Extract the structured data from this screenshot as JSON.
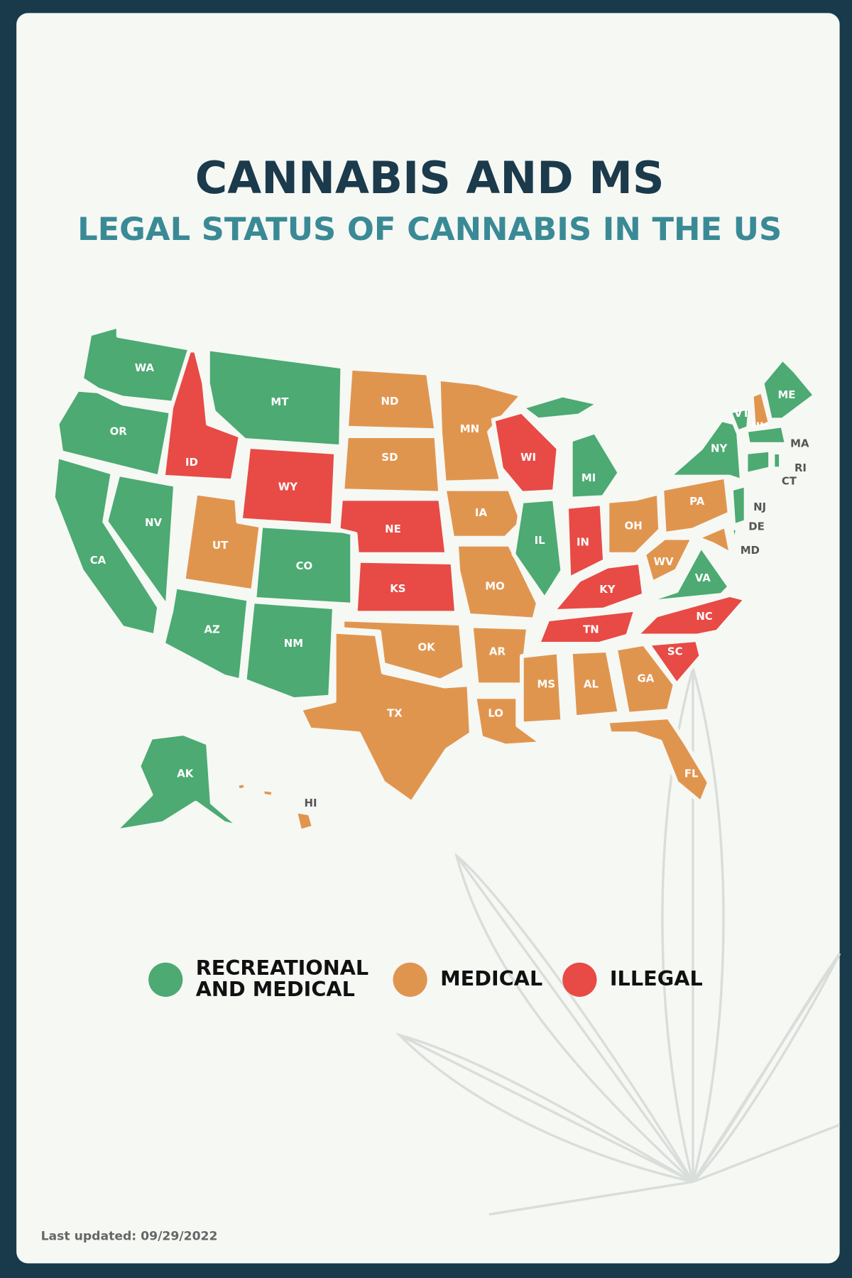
{
  "title": "CANNABIS AND MS",
  "subtitle": "LEGAL STATUS OF CANNABIS IN THE US",
  "states": [
    {
      "label": "WA",
      "color": "#4caa72"
    },
    {
      "label": "OR",
      "color": "#4caa72"
    },
    {
      "label": "CA",
      "color": "#4caa72"
    },
    {
      "label": "NV",
      "color": "#4caa72"
    },
    {
      "label": "ID",
      "color": "#e84a45"
    },
    {
      "label": "MT",
      "color": "#4caa72"
    },
    {
      "label": "WY",
      "color": "#e84a45"
    },
    {
      "label": "UT",
      "color": "#e0954f"
    },
    {
      "label": "CO",
      "color": "#4caa72"
    },
    {
      "label": "AZ",
      "color": "#4caa72"
    },
    {
      "label": "NM",
      "color": "#4caa72"
    },
    {
      "label": "ND",
      "color": "#e0954f"
    },
    {
      "label": "SD",
      "color": "#e0954f"
    },
    {
      "label": "NE",
      "color": "#e84a45"
    },
    {
      "label": "KS",
      "color": "#e84a45"
    },
    {
      "label": "OK",
      "color": "#e0954f"
    },
    {
      "label": "TX",
      "color": "#e0954f"
    },
    {
      "label": "MN",
      "color": "#e0954f"
    },
    {
      "label": "IA",
      "color": "#e0954f"
    },
    {
      "label": "MO",
      "color": "#e0954f"
    },
    {
      "label": "AR",
      "color": "#e0954f"
    },
    {
      "label": "LO",
      "color": "#e0954f"
    },
    {
      "label": "WI",
      "color": "#e84a45"
    },
    {
      "label": "MI",
      "color": "#4caa72"
    },
    {
      "label": "IL",
      "color": "#4caa72"
    },
    {
      "label": "IN",
      "color": "#e84a45"
    },
    {
      "label": "OH",
      "color": "#e0954f"
    },
    {
      "label": "KY",
      "color": "#e84a45"
    },
    {
      "label": "TN",
      "color": "#e84a45"
    },
    {
      "label": "MS",
      "color": "#e0954f"
    },
    {
      "label": "AL",
      "color": "#e0954f"
    },
    {
      "label": "GA",
      "color": "#e0954f"
    },
    {
      "label": "FL",
      "color": "#e0954f"
    },
    {
      "label": "SC",
      "color": "#e84a45"
    },
    {
      "label": "NC",
      "color": "#e84a45"
    },
    {
      "label": "VA",
      "color": "#4caa72"
    },
    {
      "label": "WV",
      "color": "#e0954f"
    },
    {
      "label": "PA",
      "color": "#e0954f"
    },
    {
      "label": "NY",
      "color": "#4caa72"
    },
    {
      "label": "NJ",
      "color": "#4caa72"
    },
    {
      "label": "DE",
      "color": "#4caa72"
    },
    {
      "label": "MD",
      "color": "#e0954f"
    },
    {
      "label": "VT",
      "color": "#4caa72"
    },
    {
      "label": "NH",
      "color": "#e0954f"
    },
    {
      "label": "ME",
      "color": "#4caa72"
    },
    {
      "label": "MA",
      "color": "#4caa72"
    },
    {
      "label": "CT",
      "color": "#4caa72"
    },
    {
      "label": "RI",
      "color": "#4caa72"
    },
    {
      "label": "AK",
      "color": "#4caa72"
    },
    {
      "label": "HI",
      "color": "#e0954f"
    }
  ],
  "legend": [
    {
      "label_lines": [
        "RECREATIONAL",
        "AND MEDICAL"
      ],
      "color": "#4caa72"
    },
    {
      "label_lines": [
        "MEDICAL"
      ],
      "color": "#e0954f"
    },
    {
      "label_lines": [
        "ILLEGAL"
      ],
      "color": "#e84a45"
    }
  ],
  "last_updated": "Last updated: 09/29/2022"
}
